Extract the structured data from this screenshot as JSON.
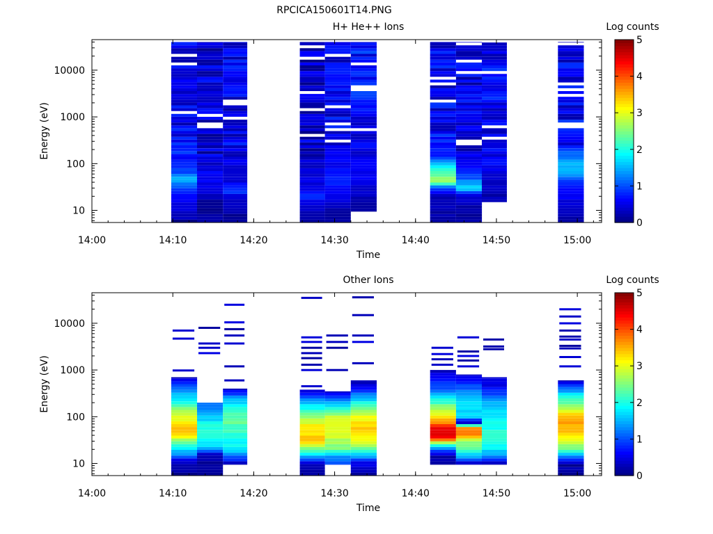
{
  "figure": {
    "title": "RPCICA150601T14.PNG"
  },
  "colorbar": {
    "colormap": "jet",
    "ticks": [
      "0",
      "1",
      "2",
      "3",
      "4",
      "5"
    ]
  },
  "chart_data": [
    {
      "type": "heatmap",
      "title": "H+ He++ Ions",
      "xlabel": "Time",
      "ylabel": "Energy (eV)",
      "colorbar_label": "Log counts",
      "x_ticks": [
        "14:00",
        "14:10",
        "14:20",
        "14:30",
        "14:40",
        "14:50",
        "15:00"
      ],
      "y_ticks": [
        "10",
        "100",
        "1000",
        "10000"
      ],
      "y_scale": "log",
      "y_range_eV": [
        5.5,
        45000
      ],
      "x_range": [
        "14:00",
        "15:03"
      ],
      "z_range": [
        0,
        5
      ],
      "columns": [
        {
          "start": "14:09.8",
          "end": "14:13.0",
          "lowest_eV": 5.5,
          "highest_eV": 40000,
          "profile": [
            [
              5.5,
              0.1
            ],
            [
              9,
              0.4
            ],
            [
              14,
              0.5
            ],
            [
              20,
              0.6
            ],
            [
              30,
              0.9
            ],
            [
              45,
              1.6
            ],
            [
              60,
              1.1
            ],
            [
              100,
              0.7
            ],
            [
              1000,
              0.5
            ],
            [
              40000,
              0.5
            ]
          ]
        },
        {
          "start": "14:13.0",
          "end": "14:16.2",
          "lowest_eV": 5.5,
          "highest_eV": 40000,
          "profile": [
            [
              5.5,
              0.1
            ],
            [
              15,
              0.2
            ],
            [
              30,
              0.5
            ],
            [
              60,
              0.6
            ],
            [
              100,
              0.4
            ],
            [
              40000,
              0.4
            ]
          ]
        },
        {
          "start": "14:16.2",
          "end": "14:19.2",
          "lowest_eV": 5.5,
          "highest_eV": 40000,
          "profile": [
            [
              5.5,
              0.1
            ],
            [
              18,
              0.3
            ],
            [
              25,
              0.9
            ],
            [
              40,
              0.5
            ],
            [
              100,
              0.5
            ],
            [
              40000,
              0.5
            ]
          ]
        },
        {
          "start": "14:25.7",
          "end": "14:28.8",
          "lowest_eV": 5.5,
          "highest_eV": 40000,
          "profile": [
            [
              5.5,
              0.1
            ],
            [
              14,
              0.4
            ],
            [
              20,
              0.9
            ],
            [
              30,
              0.5
            ],
            [
              60,
              0.4
            ],
            [
              40000,
              0.3
            ]
          ]
        },
        {
          "start": "14:28.8",
          "end": "14:32.0",
          "lowest_eV": 5.5,
          "highest_eV": 40000,
          "profile": [
            [
              5.5,
              0.2
            ],
            [
              12,
              0.3
            ],
            [
              20,
              0.5
            ],
            [
              40,
              0.7
            ],
            [
              100,
              0.6
            ],
            [
              40000,
              0.5
            ]
          ]
        },
        {
          "start": "14:32.0",
          "end": "14:35.2",
          "lowest_eV": 9.5,
          "highest_eV": 40000,
          "profile": [
            [
              9.5,
              0.1
            ],
            [
              20,
              0.3
            ],
            [
              40,
              0.5
            ],
            [
              100,
              0.6
            ],
            [
              1000,
              0.6
            ],
            [
              40000,
              0.7
            ]
          ]
        },
        {
          "start": "14:41.8",
          "end": "14:45.0",
          "lowest_eV": 5.5,
          "highest_eV": 40000,
          "profile": [
            [
              5.5,
              0.1
            ],
            [
              20,
              0.3
            ],
            [
              30,
              1.0
            ],
            [
              40,
              2.6
            ],
            [
              60,
              2.4
            ],
            [
              100,
              1.6
            ],
            [
              150,
              0.8
            ],
            [
              300,
              0.6
            ],
            [
              40000,
              0.5
            ]
          ]
        },
        {
          "start": "14:45.0",
          "end": "14:48.2",
          "lowest_eV": 5.5,
          "highest_eV": 40000,
          "profile": [
            [
              5.5,
              0.1
            ],
            [
              20,
              0.4
            ],
            [
              30,
              1.8
            ],
            [
              45,
              1.2
            ],
            [
              60,
              0.8
            ],
            [
              100,
              0.5
            ],
            [
              40000,
              0.5
            ]
          ]
        },
        {
          "start": "14:48.2",
          "end": "14:51.3",
          "lowest_eV": 15,
          "highest_eV": 40000,
          "profile": [
            [
              15,
              0.2
            ],
            [
              40,
              0.4
            ],
            [
              100,
              0.6
            ],
            [
              40000,
              0.6
            ]
          ]
        },
        {
          "start": "14:57.6",
          "end": "15:00.8",
          "lowest_eV": 5.5,
          "highest_eV": 40000,
          "profile": [
            [
              5.5,
              0.1
            ],
            [
              15,
              0.4
            ],
            [
              30,
              0.8
            ],
            [
              50,
              1.1
            ],
            [
              70,
              1.7
            ],
            [
              100,
              1.5
            ],
            [
              150,
              0.9
            ],
            [
              300,
              0.6
            ],
            [
              40000,
              0.5
            ]
          ]
        }
      ]
    },
    {
      "type": "heatmap",
      "title": "Other Ions",
      "xlabel": "Time",
      "ylabel": "Energy (eV)",
      "colorbar_label": "Log counts",
      "x_ticks": [
        "14:00",
        "14:10",
        "14:20",
        "14:30",
        "14:40",
        "14:50",
        "15:00"
      ],
      "y_ticks": [
        "10",
        "100",
        "1000",
        "10000"
      ],
      "y_scale": "log",
      "y_range_eV": [
        5.5,
        45000
      ],
      "x_range": [
        "14:00",
        "15:03"
      ],
      "z_range": [
        0,
        5
      ],
      "columns": [
        {
          "start": "14:09.8",
          "end": "14:13.0",
          "lowest_eV": 5.5,
          "highest_eV": 700,
          "profile": [
            [
              5.5,
              0.1
            ],
            [
              10,
              0.2
            ],
            [
              15,
              1.2
            ],
            [
              20,
              1.8
            ],
            [
              30,
              2.4
            ],
            [
              45,
              3.6
            ],
            [
              60,
              3.3
            ],
            [
              100,
              3.0
            ],
            [
              150,
              2.5
            ],
            [
              300,
              1.5
            ],
            [
              700,
              0.3
            ]
          ],
          "sparse_lines_eV": [
            980,
            4700,
            7000
          ]
        },
        {
          "start": "14:13.0",
          "end": "14:16.2",
          "lowest_eV": 5.5,
          "highest_eV": 200,
          "profile": [
            [
              5.5,
              0.1
            ],
            [
              15,
              0.2
            ],
            [
              20,
              1.5
            ],
            [
              30,
              1.9
            ],
            [
              60,
              2.1
            ],
            [
              100,
              1.6
            ],
            [
              200,
              1.2
            ]
          ],
          "sparse_lines_eV": [
            2300,
            3000,
            3700,
            8000
          ]
        },
        {
          "start": "14:16.2",
          "end": "14:19.2",
          "lowest_eV": 9.5,
          "highest_eV": 400,
          "profile": [
            [
              9.5,
              0.2
            ],
            [
              15,
              1.3
            ],
            [
              20,
              1.8
            ],
            [
              40,
              2.0
            ],
            [
              80,
              2.4
            ],
            [
              150,
              2.0
            ],
            [
              250,
              1.4
            ],
            [
              400,
              0.4
            ]
          ],
          "sparse_lines_eV": [
            600,
            1200,
            3700,
            5500,
            7500,
            10500,
            25000
          ]
        },
        {
          "start": "14:25.7",
          "end": "14:28.8",
          "lowest_eV": 5.5,
          "highest_eV": 380,
          "profile": [
            [
              5.5,
              0.1
            ],
            [
              10,
              0.3
            ],
            [
              15,
              1.7
            ],
            [
              20,
              2.3
            ],
            [
              30,
              3.4
            ],
            [
              60,
              3.2
            ],
            [
              100,
              2.6
            ],
            [
              200,
              1.6
            ],
            [
              380,
              0.4
            ]
          ],
          "sparse_lines_eV": [
            450,
            1000,
            1300,
            1800,
            2300,
            3000,
            4000,
            5000,
            35000
          ]
        },
        {
          "start": "14:28.8",
          "end": "14:32.0",
          "lowest_eV": 9.5,
          "highest_eV": 350,
          "profile": [
            [
              9.5,
              0.8
            ],
            [
              15,
              1.5
            ],
            [
              20,
              2.4
            ],
            [
              40,
              2.9
            ],
            [
              60,
              3.1
            ],
            [
              100,
              2.8
            ],
            [
              200,
              1.4
            ],
            [
              350,
              0.4
            ]
          ],
          "sparse_lines_eV": [
            1000,
            3000,
            4000,
            5500
          ]
        },
        {
          "start": "14:32.0",
          "end": "14:35.2",
          "lowest_eV": 5.5,
          "highest_eV": 600,
          "profile": [
            [
              5.5,
              0.1
            ],
            [
              10,
              0.5
            ],
            [
              15,
              1.6
            ],
            [
              20,
              2.3
            ],
            [
              30,
              3.1
            ],
            [
              60,
              3.4
            ],
            [
              100,
              3.0
            ],
            [
              200,
              2.0
            ],
            [
              400,
              0.6
            ],
            [
              600,
              0.3
            ]
          ],
          "sparse_lines_eV": [
            1400,
            4000,
            5500,
            15000,
            36000
          ]
        },
        {
          "start": "14:41.8",
          "end": "14:45.0",
          "lowest_eV": 9.5,
          "highest_eV": 1000,
          "profile": [
            [
              9.5,
              0.2
            ],
            [
              15,
              0.2
            ],
            [
              20,
              1.3
            ],
            [
              25,
              2.0
            ],
            [
              35,
              4.3
            ],
            [
              55,
              4.6
            ],
            [
              75,
              3.7
            ],
            [
              100,
              3.2
            ],
            [
              200,
              2.2
            ],
            [
              400,
              1.0
            ],
            [
              1000,
              0.3
            ]
          ],
          "sparse_lines_eV": [
            1300,
            1700,
            2200,
            3000
          ]
        },
        {
          "start": "14:45.0",
          "end": "14:48.2",
          "lowest_eV": 9.5,
          "highest_eV": 800,
          "profile": [
            [
              9.5,
              0.2
            ],
            [
              15,
              1.7
            ],
            [
              20,
              2.2
            ],
            [
              30,
              2.7
            ],
            [
              40,
              3.7
            ],
            [
              55,
              4.0
            ],
            [
              75,
              0.3
            ],
            [
              100,
              1.7
            ],
            [
              200,
              1.8
            ],
            [
              400,
              1.1
            ],
            [
              800,
              0.3
            ]
          ],
          "sparse_lines_eV": [
            1200,
            1600,
            2000,
            2500,
            5000
          ]
        },
        {
          "start": "14:48.2",
          "end": "14:51.3",
          "lowest_eV": 9.5,
          "highest_eV": 700,
          "profile": [
            [
              9.5,
              0.2
            ],
            [
              15,
              1.4
            ],
            [
              20,
              1.8
            ],
            [
              40,
              2.1
            ],
            [
              100,
              1.8
            ],
            [
              200,
              1.5
            ],
            [
              400,
              0.6
            ],
            [
              700,
              0.3
            ]
          ],
          "sparse_lines_eV": [
            2800,
            3200,
            4500
          ]
        },
        {
          "start": "14:57.6",
          "end": "15:00.8",
          "lowest_eV": 5.5,
          "highest_eV": 600,
          "profile": [
            [
              5.5,
              0.1
            ],
            [
              10,
              0.2
            ],
            [
              15,
              1.6
            ],
            [
              20,
              2.4
            ],
            [
              30,
              3.0
            ],
            [
              60,
              3.6
            ],
            [
              100,
              3.4
            ],
            [
              200,
              2.4
            ],
            [
              400,
              1.2
            ],
            [
              600,
              0.3
            ]
          ],
          "sparse_lines_eV": [
            1200,
            1900,
            2900,
            3300,
            4500,
            5200,
            7000,
            10000,
            14000,
            20000
          ]
        }
      ]
    }
  ]
}
